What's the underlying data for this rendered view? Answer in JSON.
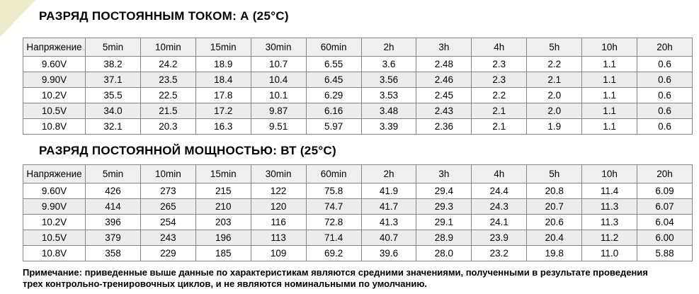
{
  "page": {
    "background": "#FFFFFF",
    "corner_triangle_color": "#ECEACB",
    "table_border_color": "#858585",
    "header_bg": "#EFEFEF",
    "alt_row_bg": "#ECECEC"
  },
  "table1": {
    "title": "РАЗРЯД ПОСТОЯННЫМ ТОКОМ: А (25°C)",
    "unit": "A",
    "columns": [
      "Напряжение",
      "5min",
      "10min",
      "15min",
      "30min",
      "60min",
      "2h",
      "3h",
      "4h",
      "5h",
      "10h",
      "20h"
    ],
    "rows": [
      [
        "9.60V",
        "38.2",
        "24.2",
        "18.9",
        "10.7",
        "6.55",
        "3.6",
        "2.48",
        "2.3",
        "2.2",
        "1.1",
        "0.6"
      ],
      [
        "9.90V",
        "37.1",
        "23.5",
        "18.4",
        "10.4",
        "6.45",
        "3.56",
        "2.46",
        "2.3",
        "2.1",
        "1.1",
        "0.6"
      ],
      [
        "10.2V",
        "35.5",
        "22.5",
        "17.8",
        "10.1",
        "6.29",
        "3.53",
        "2.45",
        "2.2",
        "2.0",
        "1.1",
        "0.6"
      ],
      [
        "10.5V",
        "34.0",
        "21.5",
        "17.2",
        "9.87",
        "6.16",
        "3.48",
        "2.43",
        "2.1",
        "2.0",
        "1.1",
        "0.6"
      ],
      [
        "10.8V",
        "32.1",
        "20.3",
        "16.3",
        "9.51",
        "5.97",
        "3.39",
        "2.36",
        "2.1",
        "1.9",
        "1.1",
        "0.6"
      ]
    ]
  },
  "table2": {
    "title": "РАЗРЯД ПОСТОЯННОЙ МОЩНОСТЬЮ: ВТ (25°C)",
    "unit": "W",
    "columns": [
      "Напряжение",
      "5min",
      "10min",
      "15min",
      "30min",
      "60min",
      "2h",
      "3h",
      "4h",
      "5h",
      "10h",
      "20h"
    ],
    "rows": [
      [
        "9.60V",
        "426",
        "273",
        "215",
        "122",
        "75.8",
        "41.9",
        "29.4",
        "24.4",
        "20.8",
        "11.4",
        "6.09"
      ],
      [
        "9.90V",
        "414",
        "265",
        "210",
        "120",
        "74.7",
        "41.7",
        "29.3",
        "24.3",
        "20.7",
        "11.3",
        "6.07"
      ],
      [
        "10.2V",
        "396",
        "254",
        "203",
        "116",
        "72.8",
        "41.3",
        "29.1",
        "24.1",
        "20.6",
        "11.3",
        "6.04"
      ],
      [
        "10.5V",
        "379",
        "243",
        "196",
        "113",
        "71.4",
        "40.7",
        "28.9",
        "23.9",
        "20.4",
        "11.2",
        "6.00"
      ],
      [
        "10.8V",
        "358",
        "229",
        "185",
        "109",
        "69.2",
        "39.6",
        "28.0",
        "23.2",
        "19.8",
        "11.0",
        "5.88"
      ]
    ]
  },
  "note": {
    "line1": "Примечание: приведенные выше данные по характеристикам являются средними значениями, полученными в результате проведения",
    "line2": "трех контрольно-тренировочных циклов, и не являются номинальными по умолчанию."
  }
}
